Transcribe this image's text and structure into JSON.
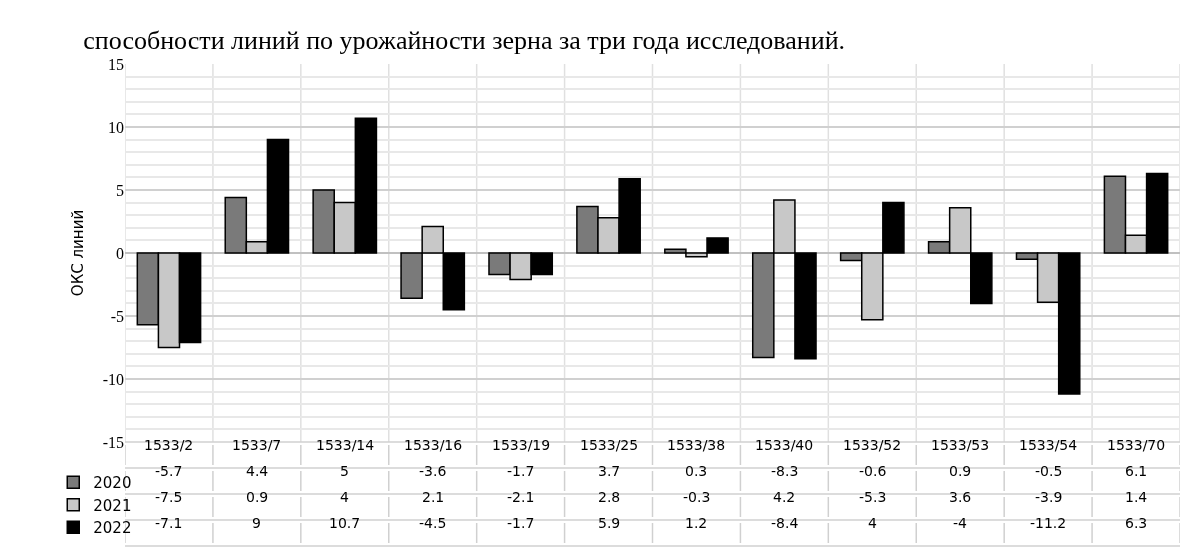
{
  "chart_data": {
    "type": "bar",
    "title": "способности линий по урожайности зерна за три года исследований.",
    "ylabel": "ОКС линий",
    "categories": [
      "1533/2",
      "1533/7",
      "1533/14",
      "1533/16",
      "1533/19",
      "1533/25",
      "1533/38",
      "1533/40",
      "1533/52",
      "1533/53",
      "1533/54",
      "1533/70"
    ],
    "series": [
      {
        "name": "2020",
        "color": "#7a7a7a",
        "values": [
          -5.7,
          4.4,
          5,
          -3.6,
          -1.7,
          3.7,
          0.3,
          -8.3,
          -0.6,
          0.9,
          -0.5,
          6.1
        ]
      },
      {
        "name": "2021",
        "color": "#c8c8c8",
        "values": [
          -7.5,
          0.9,
          4,
          2.1,
          -2.1,
          2.8,
          -0.3,
          4.2,
          -5.3,
          3.6,
          -3.9,
          1.4
        ]
      },
      {
        "name": "2022",
        "color": "#000000",
        "values": [
          -7.1,
          9,
          10.7,
          -4.5,
          -1.7,
          5.9,
          1.2,
          -8.4,
          4,
          -4,
          -11.2,
          6.3
        ]
      }
    ],
    "ylim": [
      -15,
      15
    ],
    "yticks": [
      -15,
      -10,
      -5,
      0,
      5,
      10,
      15
    ],
    "grid": true,
    "data_labels": true,
    "legend": "bottom left"
  }
}
